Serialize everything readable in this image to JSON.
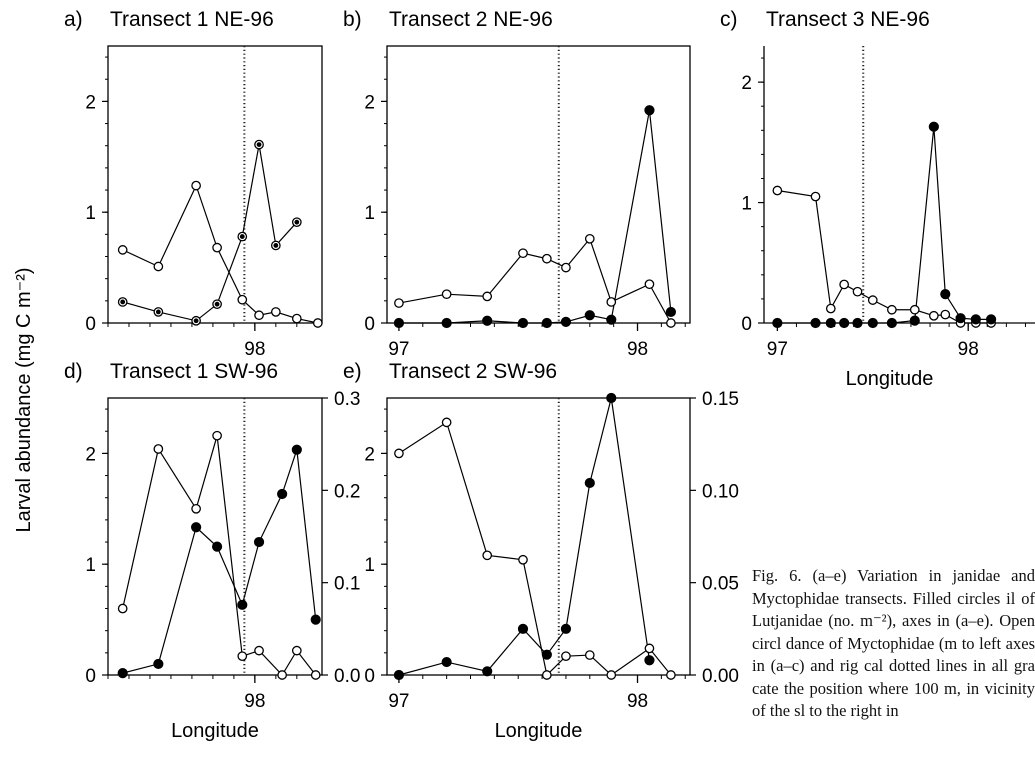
{
  "figure": {
    "ylabel": "Larval abundance (mg C m⁻²)",
    "caption": "Fig. 6. (a–e) Variation in janidae and Myctophidae transects. Filled circles il of Lutjanidae (no. m⁻²), axes in (a–e). Open circl dance of Myctophidae (m to left axes in (a–c) and rig cal dotted lines in all gra cate the position where 100 m, in vicinity of the sl to the right in"
  },
  "chart_data": [
    {
      "id": "a",
      "type": "line",
      "panel_label": "a)",
      "title": "Transect 1  NE-96",
      "xlabel": "",
      "xticks": [
        "98"
      ],
      "xlim": [
        97.3,
        98.32
      ],
      "ylim": [
        0,
        2.5
      ],
      "yticks": [
        "0",
        "1",
        "2"
      ],
      "shelf_break_longitude": 97.95,
      "series": [
        {
          "marker": "open",
          "points": [
            [
              97.37,
              0.66
            ],
            [
              97.54,
              0.51
            ],
            [
              97.72,
              1.24
            ],
            [
              97.82,
              0.68
            ],
            [
              97.94,
              0.21
            ],
            [
              98.02,
              0.07
            ],
            [
              98.1,
              0.1
            ],
            [
              98.2,
              0.04
            ],
            [
              98.3,
              0.0
            ]
          ]
        },
        {
          "marker": "filled-small",
          "points": [
            [
              97.37,
              0.19
            ],
            [
              97.54,
              0.1
            ],
            [
              97.72,
              0.02
            ],
            [
              97.82,
              0.17
            ],
            [
              97.94,
              0.78
            ],
            [
              98.02,
              1.61
            ],
            [
              98.1,
              0.7
            ],
            [
              98.2,
              0.91
            ]
          ]
        }
      ]
    },
    {
      "id": "b",
      "type": "line",
      "panel_label": "b)",
      "title": "Transect 2  NE-96",
      "xlabel": "",
      "xticks": [
        "97",
        "98"
      ],
      "xlim": [
        96.95,
        98.22
      ],
      "ylim": [
        0,
        2.5
      ],
      "yticks": [
        "0",
        "1",
        "2"
      ],
      "shelf_break_longitude": 97.67,
      "series": [
        {
          "marker": "open",
          "points": [
            [
              97.0,
              0.18
            ],
            [
              97.2,
              0.26
            ],
            [
              97.37,
              0.24
            ],
            [
              97.52,
              0.63
            ],
            [
              97.62,
              0.58
            ],
            [
              97.7,
              0.5
            ],
            [
              97.8,
              0.76
            ],
            [
              97.89,
              0.19
            ],
            [
              98.05,
              0.35
            ],
            [
              98.14,
              0.0
            ]
          ]
        },
        {
          "marker": "filled",
          "points": [
            [
              97.0,
              0.0
            ],
            [
              97.2,
              0.0
            ],
            [
              97.37,
              0.02
            ],
            [
              97.52,
              0.0
            ],
            [
              97.62,
              0.0
            ],
            [
              97.7,
              0.01
            ],
            [
              97.8,
              0.07
            ],
            [
              97.89,
              0.03
            ],
            [
              98.05,
              1.92
            ],
            [
              98.14,
              0.1
            ]
          ]
        }
      ]
    },
    {
      "id": "c",
      "type": "line",
      "panel_label": "c)",
      "title": "Transect 3  NE-96",
      "xlabel": "Longitude",
      "xticks": [
        "97",
        "98"
      ],
      "xlim": [
        96.93,
        98.35
      ],
      "ylim": [
        0,
        2.3
      ],
      "yticks": [
        "0",
        "1",
        "2"
      ],
      "shelf_break_longitude": 97.45,
      "series": [
        {
          "marker": "open",
          "points": [
            [
              97.0,
              1.1
            ],
            [
              97.2,
              1.05
            ],
            [
              97.28,
              0.12
            ],
            [
              97.35,
              0.32
            ],
            [
              97.42,
              0.26
            ],
            [
              97.5,
              0.19
            ],
            [
              97.6,
              0.11
            ],
            [
              97.72,
              0.11
            ],
            [
              97.82,
              0.06
            ],
            [
              97.88,
              0.07
            ],
            [
              97.96,
              0.0
            ],
            [
              98.04,
              0.0
            ],
            [
              98.12,
              0.0
            ]
          ]
        },
        {
          "marker": "filled",
          "points": [
            [
              97.0,
              0.0
            ],
            [
              97.2,
              0.0
            ],
            [
              97.28,
              0.0
            ],
            [
              97.35,
              0.0
            ],
            [
              97.42,
              0.0
            ],
            [
              97.5,
              0.0
            ],
            [
              97.6,
              0.0
            ],
            [
              97.72,
              0.02
            ],
            [
              97.82,
              1.63
            ],
            [
              97.88,
              0.24
            ],
            [
              97.96,
              0.04
            ],
            [
              98.04,
              0.03
            ],
            [
              98.12,
              0.03
            ]
          ]
        }
      ]
    },
    {
      "id": "d",
      "type": "line",
      "panel_label": "d)",
      "title": "Transect 1  SW-96",
      "xlabel": "Longitude",
      "xticks": [
        "98"
      ],
      "xlim": [
        97.3,
        98.32
      ],
      "ylim": [
        0,
        2.5
      ],
      "yticks": [
        "0",
        "1",
        "2"
      ],
      "y2lim": [
        0,
        0.3
      ],
      "y2ticks": [
        "0.0",
        "0.1",
        "0.2",
        "0.3"
      ],
      "shelf_break_longitude": 97.95,
      "series": [
        {
          "marker": "open",
          "axis": "left",
          "points": [
            [
              97.37,
              0.6
            ],
            [
              97.54,
              2.04
            ],
            [
              97.72,
              1.5
            ],
            [
              97.82,
              2.16
            ],
            [
              97.94,
              0.17
            ],
            [
              98.02,
              0.22
            ],
            [
              98.13,
              0.0
            ],
            [
              98.2,
              0.22
            ],
            [
              98.29,
              0.0
            ]
          ]
        },
        {
          "marker": "filled",
          "axis": "right",
          "points": [
            [
              97.37,
              0.002
            ],
            [
              97.54,
              0.012
            ],
            [
              97.72,
              0.16
            ],
            [
              97.82,
              0.139
            ],
            [
              97.94,
              0.076
            ],
            [
              98.02,
              0.144
            ],
            [
              98.13,
              0.196
            ],
            [
              98.2,
              0.244
            ],
            [
              98.29,
              0.06
            ]
          ]
        }
      ]
    },
    {
      "id": "e",
      "type": "line",
      "panel_label": "e)",
      "title": "Transect 2  SW-96",
      "xlabel": "Longitude",
      "xticks": [
        "97",
        "98"
      ],
      "xlim": [
        96.95,
        98.22
      ],
      "ylim": [
        0,
        2.5
      ],
      "yticks": [
        "0",
        "1",
        "2"
      ],
      "y2lim": [
        0,
        0.15
      ],
      "y2ticks": [
        "0.00",
        "0.05",
        "0.10",
        "0.15"
      ],
      "shelf_break_longitude": 97.67,
      "series": [
        {
          "marker": "open",
          "axis": "left",
          "points": [
            [
              97.0,
              2.0
            ],
            [
              97.2,
              2.28
            ],
            [
              97.37,
              1.08
            ],
            [
              97.52,
              1.04
            ],
            [
              97.62,
              0.0
            ],
            [
              97.7,
              0.17
            ],
            [
              97.8,
              0.18
            ],
            [
              97.89,
              0.0
            ],
            [
              98.05,
              0.24
            ],
            [
              98.14,
              0.0
            ]
          ]
        },
        {
          "marker": "filled",
          "axis": "right",
          "points": [
            [
              97.0,
              0.0
            ],
            [
              97.2,
              0.007
            ],
            [
              97.37,
              0.002
            ],
            [
              97.52,
              0.025
            ],
            [
              97.62,
              0.011
            ],
            [
              97.7,
              0.025
            ],
            [
              97.8,
              0.104
            ],
            [
              97.89,
              0.15
            ],
            [
              98.05,
              0.008
            ]
          ]
        }
      ]
    }
  ]
}
